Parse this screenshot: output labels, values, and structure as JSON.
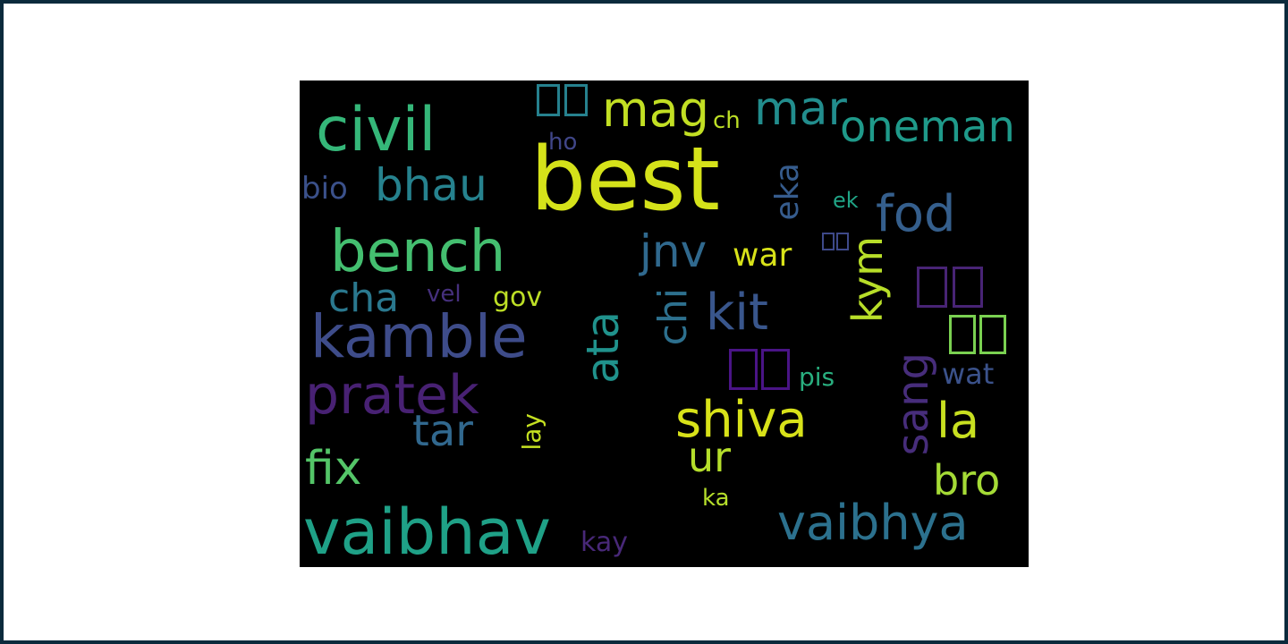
{
  "words": [
    {
      "text": "best",
      "color": "#d5e21a"
    },
    {
      "text": "vaibhav",
      "color": "#1fa187"
    },
    {
      "text": "kamble",
      "color": "#3e4c8a"
    },
    {
      "text": "pratek",
      "color": "#482173"
    },
    {
      "text": "bench",
      "color": "#44bf70"
    },
    {
      "text": "civil",
      "color": "#35b779"
    },
    {
      "text": "vaibhya",
      "color": "#2c718e"
    },
    {
      "text": "shiva",
      "color": "#d8e219"
    },
    {
      "text": "oneman",
      "color": "#1f9a8a"
    },
    {
      "text": "bhau",
      "color": "#26828e"
    },
    {
      "text": "mag",
      "color": "#c2df23"
    },
    {
      "text": "mar",
      "color": "#228d8d"
    },
    {
      "text": "fod",
      "color": "#355f8d"
    },
    {
      "text": "kit",
      "color": "#39568c"
    },
    {
      "text": "jnv",
      "color": "#30698e"
    },
    {
      "text": "tar",
      "color": "#31688e"
    },
    {
      "text": "fix",
      "color": "#54c568"
    },
    {
      "text": "cha",
      "color": "#2a788e"
    },
    {
      "text": "la",
      "color": "#c8e020"
    },
    {
      "text": "bro",
      "color": "#a5db36"
    },
    {
      "text": "ur",
      "color": "#b5de2b"
    },
    {
      "text": "war",
      "color": "#d8e219"
    },
    {
      "text": "wat",
      "color": "#3b528b"
    },
    {
      "text": "bio",
      "color": "#3b518b"
    },
    {
      "text": "ch",
      "color": "#bddf26"
    },
    {
      "text": "ho",
      "color": "#404688"
    },
    {
      "text": "ek",
      "color": "#20a486"
    },
    {
      "text": "gov",
      "color": "#bddf26"
    },
    {
      "text": "vel",
      "color": "#46307e"
    },
    {
      "text": "pis",
      "color": "#29af7f"
    },
    {
      "text": "kay",
      "color": "#482878"
    },
    {
      "text": "ka",
      "color": "#b5de2b"
    },
    {
      "text": "ata",
      "color": "#20928c"
    },
    {
      "text": "chi",
      "color": "#2d708e"
    },
    {
      "text": "kym",
      "color": "#b8de29"
    },
    {
      "text": "eka",
      "color": "#365c8d"
    },
    {
      "text": "sang",
      "color": "#472d7b"
    },
    {
      "text": "lay",
      "color": "#c5e021"
    }
  ],
  "glyph_colors": {
    "top": "#26818e",
    "right_upper": "#482475",
    "right_mid": "#7ad151",
    "center": "#4a1486",
    "small": "#3e4989"
  }
}
